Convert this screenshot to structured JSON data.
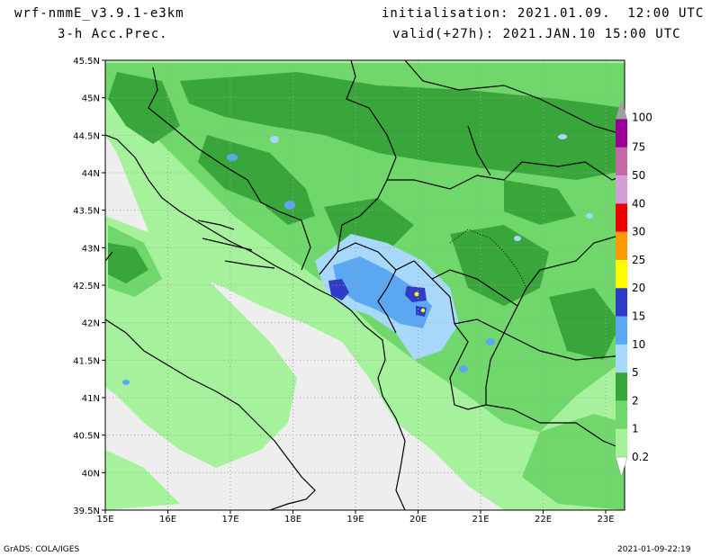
{
  "header": {
    "model": "wrf-nmmE_v3.9.1-e3km",
    "field": "3-h Acc.Prec.",
    "initialisation": "initialisation: 2021.01.09.  12:00 UTC",
    "valid": "valid(+27h): 2021.JAN.10 15:00 UTC"
  },
  "footer": {
    "credit": "GrADS: COLA/IGES",
    "timestamp": "2021-01-09-22:19"
  },
  "axes": {
    "lat": [
      "45.5N",
      "45N",
      "44.5N",
      "44N",
      "43.5N",
      "43N",
      "42.5N",
      "42N",
      "41.5N",
      "41N",
      "40.5N",
      "40N",
      "39.5N"
    ],
    "lon": [
      "15E",
      "16E",
      "17E",
      "18E",
      "19E",
      "20E",
      "21E",
      "22E",
      "23E"
    ]
  },
  "legend": [
    {
      "label": "0.2",
      "color": "#a6f29c"
    },
    {
      "label": "1",
      "color": "#70d86a"
    },
    {
      "label": "2",
      "color": "#38a63a"
    },
    {
      "label": "5",
      "color": "#a8d8fb"
    },
    {
      "label": "10",
      "color": "#5aa8f2"
    },
    {
      "label": "15",
      "color": "#2e3cc8"
    },
    {
      "label": "20",
      "color": "#fdfd00"
    },
    {
      "label": "25",
      "color": "#fd9a00"
    },
    {
      "label": "30",
      "color": "#ee0000"
    },
    {
      "label": "40",
      "color": "#d2a0d6"
    },
    {
      "label": "50",
      "color": "#c36aa6"
    },
    {
      "label": "75",
      "color": "#9a0096"
    },
    {
      "label": "100",
      "color": "#a0a0a0"
    }
  ]
}
